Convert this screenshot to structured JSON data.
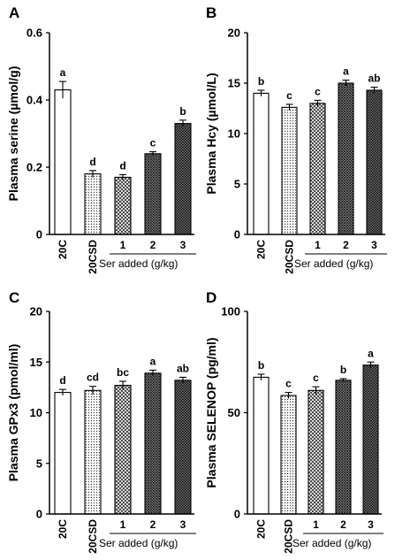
{
  "panels": [
    {
      "letter": "A",
      "ylabel": "Plasma serine (µmol/g)",
      "ylim": [
        0,
        0.6
      ],
      "yticks": [
        "0",
        "0.2",
        "0.4",
        "0.6"
      ],
      "group_label": "Ser added (g/kg)"
    },
    {
      "letter": "B",
      "ylabel": "Plasma Hcy (µmol/L)",
      "ylim": [
        0,
        20
      ],
      "yticks": [
        "0",
        "5",
        "10",
        "15",
        "20"
      ],
      "group_label": "Ser added (g/kg)"
    },
    {
      "letter": "C",
      "ylabel": "Plasma GPx3 (pmol/ml)",
      "ylim": [
        0,
        20
      ],
      "yticks": [
        "0",
        "5",
        "10",
        "15",
        "20"
      ],
      "group_label": "Ser added (g/kg)"
    },
    {
      "letter": "D",
      "ylabel": "Plasma SELENOP (pg/ml)",
      "ylim": [
        0,
        100
      ],
      "yticks": [
        "0",
        "50",
        "100"
      ],
      "group_label": "Ser added (g/kg)"
    }
  ],
  "chart_data": [
    {
      "type": "bar",
      "panel": "A",
      "categories": [
        "20C",
        "20CSD",
        "1",
        "2",
        "3"
      ],
      "values": [
        0.43,
        0.18,
        0.17,
        0.24,
        0.33
      ],
      "errors": [
        0.025,
        0.01,
        0.008,
        0.006,
        0.01
      ],
      "significance": [
        "a",
        "d",
        "d",
        "c",
        "b"
      ],
      "ylabel": "Plasma serine (µmol/g)",
      "xlabel": "Ser added (g/kg)",
      "ylim": [
        0,
        0.6
      ]
    },
    {
      "type": "bar",
      "panel": "B",
      "categories": [
        "20C",
        "20CSD",
        "1",
        "2",
        "3"
      ],
      "values": [
        14.0,
        12.6,
        13.0,
        15.0,
        14.3
      ],
      "errors": [
        0.3,
        0.3,
        0.3,
        0.3,
        0.3
      ],
      "significance": [
        "b",
        "c",
        "c",
        "a",
        "ab"
      ],
      "ylabel": "Plasma Hcy (µmol/L)",
      "xlabel": "Ser added (g/kg)",
      "ylim": [
        0,
        20
      ]
    },
    {
      "type": "bar",
      "panel": "C",
      "categories": [
        "20C",
        "20CSD",
        "1",
        "2",
        "3"
      ],
      "values": [
        12.0,
        12.2,
        12.7,
        13.9,
        13.2
      ],
      "errors": [
        0.3,
        0.4,
        0.4,
        0.3,
        0.3
      ],
      "significance": [
        "d",
        "cd",
        "bc",
        "a",
        "ab"
      ],
      "ylabel": "Plasma GPx3 (pmol/ml)",
      "xlabel": "Ser added (g/kg)",
      "ylim": [
        0,
        20
      ]
    },
    {
      "type": "bar",
      "panel": "D",
      "categories": [
        "20C",
        "20CSD",
        "1",
        "2",
        "3"
      ],
      "values": [
        67.5,
        58.5,
        61.0,
        66.0,
        73.5
      ],
      "errors": [
        1.5,
        1.5,
        1.8,
        0.8,
        1.5
      ],
      "significance": [
        "b",
        "c",
        "c",
        "b",
        "a"
      ],
      "ylabel": "Plasma SELENOP (pg/ml)",
      "xlabel": "Ser added (g/kg)",
      "ylim": [
        0,
        100
      ]
    }
  ]
}
